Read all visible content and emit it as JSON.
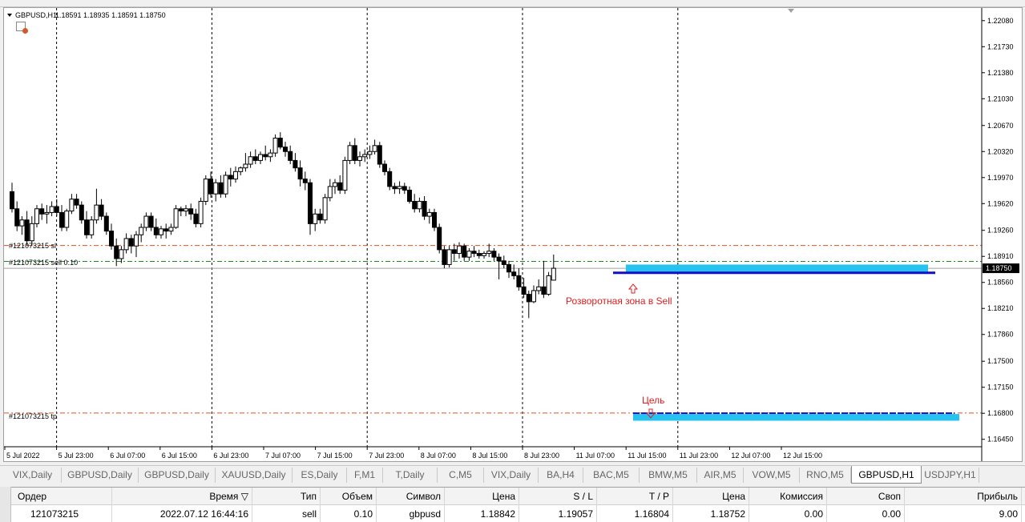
{
  "chart": {
    "title": "GBPUSD,H1",
    "ohlc_text": "1.18591 1.18935 1.18591 1.18750",
    "current_price": "1.18750",
    "price_ticks": [
      "1.22080",
      "1.21730",
      "1.21380",
      "1.21030",
      "1.20670",
      "1.20320",
      "1.19970",
      "1.19620",
      "1.19260",
      "1.18910",
      "1.18560",
      "1.18210",
      "1.17860",
      "1.17500",
      "1.17150",
      "1.16800",
      "1.16450"
    ],
    "time_ticks": [
      "5 Jul 2022",
      "5 Jul 23:00",
      "6 Jul 07:00",
      "6 Jul 15:00",
      "6 Jul 23:00",
      "7 Jul 07:00",
      "7 Jul 15:00",
      "7 Jul 23:00",
      "8 Jul 07:00",
      "8 Jul 15:00",
      "8 Jul 23:00",
      "11 Jul 07:00",
      "11 Jul 15:00",
      "11 Jul 23:00",
      "12 Jul 07:00",
      "12 Jul 15:00"
    ],
    "order_labels": {
      "sl": "#121073215 sl",
      "entry": "#121073215 sell 0.10",
      "tp": "#121073215 tp"
    },
    "annotations": {
      "reversal": "Розворотная зона в Sell",
      "target": "Цель"
    },
    "colors": {
      "bull": "#ffffff",
      "bear": "#000000",
      "sl_line": "#e0501a",
      "entry_line": "#1a8a1a",
      "tp_line": "#e0501a",
      "zone": "#27c3f0",
      "zone_line": "#1010c0",
      "annotation": "#e02020"
    }
  },
  "chart_data": {
    "type": "candlestick",
    "symbol": "GBPUSD",
    "timeframe": "H1",
    "ylim": [
      1.1635,
      1.2225
    ],
    "sl_price": 1.19057,
    "entry_price": 1.18842,
    "tp_price": 1.16804,
    "zone_top": 1.188,
    "zone_bottom": 1.187,
    "target_zone_top": 1.1679,
    "target_zone_bottom": 1.167,
    "candles": [
      [
        1.1978,
        1.199,
        1.195,
        1.1955
      ],
      [
        1.1955,
        1.1965,
        1.1925,
        1.1932
      ],
      [
        1.1932,
        1.1945,
        1.192,
        1.194
      ],
      [
        1.194,
        1.1952,
        1.1905,
        1.1912
      ],
      [
        1.1912,
        1.1945,
        1.1905,
        1.1935
      ],
      [
        1.1935,
        1.196,
        1.193,
        1.1955
      ],
      [
        1.1955,
        1.1962,
        1.194,
        1.1948
      ],
      [
        1.1948,
        1.196,
        1.1935,
        1.195
      ],
      [
        1.195,
        1.1965,
        1.1945,
        1.1958
      ],
      [
        1.1958,
        1.1968,
        1.1945,
        1.195
      ],
      [
        1.195,
        1.196,
        1.1925,
        1.193
      ],
      [
        1.193,
        1.1955,
        1.1925,
        1.1952
      ],
      [
        1.1952,
        1.1975,
        1.1948,
        1.1968
      ],
      [
        1.1968,
        1.1975,
        1.1955,
        1.196
      ],
      [
        1.196,
        1.1965,
        1.1935,
        1.194
      ],
      [
        1.194,
        1.1952,
        1.1915,
        1.192
      ],
      [
        1.192,
        1.1945,
        1.1915,
        1.194
      ],
      [
        1.194,
        1.1982,
        1.1935,
        1.196
      ],
      [
        1.196,
        1.1968,
        1.194,
        1.1945
      ],
      [
        1.1945,
        1.195,
        1.192,
        1.1925
      ],
      [
        1.1925,
        1.1935,
        1.19,
        1.1905
      ],
      [
        1.1905,
        1.1915,
        1.1878,
        1.1888
      ],
      [
        1.1888,
        1.1905,
        1.1882,
        1.19
      ],
      [
        1.19,
        1.1922,
        1.1895,
        1.1915
      ],
      [
        1.1915,
        1.192,
        1.1895,
        1.1905
      ],
      [
        1.1905,
        1.1925,
        1.189,
        1.192
      ],
      [
        1.192,
        1.1935,
        1.191,
        1.193
      ],
      [
        1.193,
        1.195,
        1.1925,
        1.1945
      ],
      [
        1.1945,
        1.195,
        1.1925,
        1.193
      ],
      [
        1.193,
        1.1942,
        1.1915,
        1.192
      ],
      [
        1.192,
        1.1932,
        1.1915,
        1.1928
      ],
      [
        1.1928,
        1.1935,
        1.1915,
        1.1925
      ],
      [
        1.1925,
        1.1935,
        1.192,
        1.193
      ],
      [
        1.193,
        1.196,
        1.1928,
        1.1955
      ],
      [
        1.1955,
        1.1958,
        1.1945,
        1.1952
      ],
      [
        1.1952,
        1.196,
        1.1945,
        1.1955
      ],
      [
        1.1955,
        1.1962,
        1.194,
        1.1948
      ],
      [
        1.1948,
        1.1955,
        1.193,
        1.1935
      ],
      [
        1.1935,
        1.197,
        1.193,
        1.1965
      ],
      [
        1.1965,
        1.2,
        1.196,
        1.1995
      ],
      [
        1.1995,
        1.2005,
        1.197,
        1.1975
      ],
      [
        1.1975,
        1.1995,
        1.1965,
        1.199
      ],
      [
        1.199,
        1.2,
        1.197,
        1.1975
      ],
      [
        1.1975,
        1.2005,
        1.197,
        1.2
      ],
      [
        1.2,
        1.201,
        1.1985,
        1.1995
      ],
      [
        1.1995,
        1.2012,
        1.199,
        1.2005
      ],
      [
        1.2005,
        1.2012,
        1.2,
        1.201
      ],
      [
        1.201,
        1.203,
        1.2005,
        1.2015
      ],
      [
        1.2015,
        1.2032,
        1.201,
        1.2025
      ],
      [
        1.2025,
        1.2035,
        1.2015,
        1.202
      ],
      [
        1.202,
        1.2032,
        1.2015,
        1.2028
      ],
      [
        1.2028,
        1.204,
        1.202,
        1.2025
      ],
      [
        1.2025,
        1.2035,
        1.2018,
        1.203
      ],
      [
        1.203,
        1.2055,
        1.2025,
        1.205
      ],
      [
        1.205,
        1.2058,
        1.2035,
        1.2038
      ],
      [
        1.2038,
        1.2045,
        1.2025,
        1.2032
      ],
      [
        1.2032,
        1.204,
        1.2015,
        1.202
      ],
      [
        1.202,
        1.203,
        1.2005,
        1.201
      ],
      [
        1.201,
        1.202,
        1.1985,
        1.1995
      ],
      [
        1.1995,
        1.2005,
        1.198,
        1.199
      ],
      [
        1.199,
        1.1995,
        1.192,
        1.1935
      ],
      [
        1.1935,
        1.1955,
        1.1925,
        1.1948
      ],
      [
        1.1948,
        1.1955,
        1.1935,
        1.194
      ],
      [
        1.194,
        1.1975,
        1.1935,
        1.197
      ],
      [
        1.197,
        1.1995,
        1.1965,
        1.1985
      ],
      [
        1.1985,
        1.1995,
        1.1975,
        1.199
      ],
      [
        1.199,
        1.2,
        1.1975,
        1.198
      ],
      [
        1.198,
        1.2025,
        1.1975,
        1.202
      ],
      [
        1.202,
        1.2045,
        1.2015,
        1.204
      ],
      [
        1.204,
        1.205,
        1.2015,
        1.202
      ],
      [
        1.202,
        1.2032,
        1.2012,
        1.2025
      ],
      [
        1.2025,
        1.2035,
        1.2018,
        1.2028
      ],
      [
        1.2028,
        1.204,
        1.2022,
        1.2032
      ],
      [
        1.2032,
        1.2048,
        1.2028,
        1.204
      ],
      [
        1.204,
        1.2045,
        1.201,
        1.2015
      ],
      [
        1.2015,
        1.202,
        1.2,
        1.2005
      ],
      [
        1.2005,
        1.201,
        1.198,
        1.1985
      ],
      [
        1.1985,
        1.199,
        1.1975,
        1.1982
      ],
      [
        1.1982,
        1.1992,
        1.1975,
        1.1985
      ],
      [
        1.1985,
        1.199,
        1.1975,
        1.198
      ],
      [
        1.198,
        1.1985,
        1.1962,
        1.1965
      ],
      [
        1.1965,
        1.1975,
        1.195,
        1.1955
      ],
      [
        1.1955,
        1.197,
        1.195,
        1.1965
      ],
      [
        1.1965,
        1.1972,
        1.194,
        1.1945
      ],
      [
        1.1945,
        1.1955,
        1.1935,
        1.195
      ],
      [
        1.195,
        1.1955,
        1.1925,
        1.193
      ],
      [
        1.193,
        1.1935,
        1.1895,
        1.19
      ],
      [
        1.19,
        1.1905,
        1.1875,
        1.188
      ],
      [
        1.188,
        1.1905,
        1.1876,
        1.19
      ],
      [
        1.19,
        1.1908,
        1.1885,
        1.1895
      ],
      [
        1.1895,
        1.191,
        1.1888,
        1.1905
      ],
      [
        1.1905,
        1.1908,
        1.1885,
        1.189
      ],
      [
        1.189,
        1.1902,
        1.1885,
        1.1898
      ],
      [
        1.1898,
        1.1905,
        1.189,
        1.1895
      ],
      [
        1.1895,
        1.19,
        1.1888,
        1.1892
      ],
      [
        1.1892,
        1.1898,
        1.1888,
        1.1895
      ],
      [
        1.1895,
        1.1908,
        1.189,
        1.1898
      ],
      [
        1.1898,
        1.1902,
        1.1885,
        1.189
      ],
      [
        1.189,
        1.1895,
        1.186,
        1.1885
      ],
      [
        1.1885,
        1.1892,
        1.1875,
        1.188
      ],
      [
        1.188,
        1.1885,
        1.1862,
        1.187
      ],
      [
        1.187,
        1.188,
        1.186,
        1.1865
      ],
      [
        1.1865,
        1.1875,
        1.1845,
        1.185
      ],
      [
        1.185,
        1.1862,
        1.1835,
        1.184
      ],
      [
        1.184,
        1.1845,
        1.1808,
        1.183
      ],
      [
        1.183,
        1.1852,
        1.1828,
        1.1845
      ],
      [
        1.1845,
        1.186,
        1.184,
        1.185
      ],
      [
        1.185,
        1.1885,
        1.1835,
        1.184
      ],
      [
        1.184,
        1.187,
        1.1838,
        1.1865
      ],
      [
        1.1859,
        1.18935,
        1.1859,
        1.1875
      ]
    ]
  },
  "tabs": [
    "VIX,Daily",
    "GBPUSD,Daily",
    "GBPUSD,Daily",
    "XAUUSD,Daily",
    "ES,Daily",
    "F,M1",
    "T,Daily",
    "C,M5",
    "VIX,Daily",
    "BA,H4",
    "BAC,M5",
    "BMW,M5",
    "AIR,M5",
    "VOW,M5",
    "RNO,M5",
    "GBPUSD,H1",
    "USDJPY,H1"
  ],
  "active_tab": "GBPUSD,H1",
  "terminal": {
    "headers": [
      "Ордер",
      "Время",
      "Тип",
      "Объем",
      "Символ",
      "Цена",
      "S / L",
      "T / P",
      "Цена",
      "Комиссия",
      "Своп",
      "Прибыль"
    ],
    "row": [
      "121073215",
      "2022.07.12 16:44:16",
      "sell",
      "0.10",
      "gbpusd",
      "1.18842",
      "1.19057",
      "1.16804",
      "1.18752",
      "0.00",
      "0.00",
      "9.00"
    ]
  }
}
